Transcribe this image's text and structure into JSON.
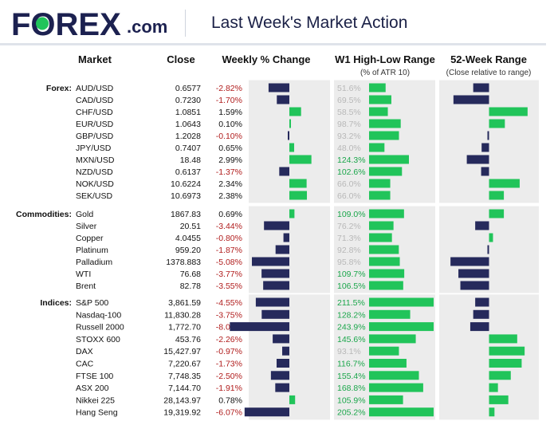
{
  "header": {
    "logo_text": "FOREX",
    "logo_suffix": ".com",
    "title": "Last Week's Market Action"
  },
  "colors": {
    "navy": "#262a5c",
    "green": "#21c45a",
    "gray_text": "#b8b8b8",
    "green_text": "#1aa64a",
    "neg_text": "#b01c1c",
    "panel_bg": "#ececec"
  },
  "columns": {
    "market": "Market",
    "close": "Close",
    "weekly": "Weekly % Change",
    "w1": "W1 High-Low Range",
    "w1_sub": "(% of ATR 10)",
    "w52": "52-Week Range",
    "w52_sub": "(Close relative to range)"
  },
  "chart_data": {
    "type": "table",
    "title": "Last Week's Market Action",
    "groups": [
      {
        "name": "Forex:",
        "rows": [
          {
            "market": "AUD/USD",
            "close": "0.6577",
            "chg": "-2.82%",
            "chg_v": -2.82,
            "rng": "51.6%",
            "rng_v": 51.6,
            "w52": -0.32
          },
          {
            "market": "CAD/USD",
            "close": "0.7230",
            "chg": "-1.70%",
            "chg_v": -1.7,
            "rng": "69.5%",
            "rng_v": 69.5,
            "w52": -0.72
          },
          {
            "market": "CHF/USD",
            "close": "1.0851",
            "chg": "1.59%",
            "chg_v": 1.59,
            "rng": "58.5%",
            "rng_v": 58.5,
            "w52": 0.78
          },
          {
            "market": "EUR/USD",
            "close": "1.0643",
            "chg": "0.10%",
            "chg_v": 0.1,
            "rng": "98.7%",
            "rng_v": 98.7,
            "w52": 0.32
          },
          {
            "market": "GBP/USD",
            "close": "1.2028",
            "chg": "-0.10%",
            "chg_v": -0.1,
            "rng": "93.2%",
            "rng_v": 93.2,
            "w52": -0.02
          },
          {
            "market": "JPY/USD",
            "close": "0.7407",
            "chg": "0.65%",
            "chg_v": 0.65,
            "rng": "48.0%",
            "rng_v": 48.0,
            "w52": -0.15
          },
          {
            "market": "MXN/USD",
            "close": "18.48",
            "chg": "2.99%",
            "chg_v": 2.99,
            "rng": "124.3%",
            "rng_v": 124.3,
            "w52": -0.45
          },
          {
            "market": "NZD/USD",
            "close": "0.6137",
            "chg": "-1.37%",
            "chg_v": -1.37,
            "rng": "102.6%",
            "rng_v": 102.6,
            "w52": -0.16
          },
          {
            "market": "NOK/USD",
            "close": "10.6224",
            "chg": "2.34%",
            "chg_v": 2.34,
            "rng": "66.0%",
            "rng_v": 66.0,
            "w52": 0.62
          },
          {
            "market": "SEK/USD",
            "close": "10.6973",
            "chg": "2.38%",
            "chg_v": 2.38,
            "rng": "66.0%",
            "rng_v": 66.0,
            "w52": 0.3
          }
        ]
      },
      {
        "name": "Commodities:",
        "rows": [
          {
            "market": "Gold",
            "close": "1867.83",
            "chg": "0.69%",
            "chg_v": 0.69,
            "rng": "109.0%",
            "rng_v": 109.0,
            "w52": 0.3
          },
          {
            "market": "Silver",
            "close": "20.51",
            "chg": "-3.44%",
            "chg_v": -3.44,
            "rng": "76.2%",
            "rng_v": 76.2,
            "w52": -0.28
          },
          {
            "market": "Copper",
            "close": "4.0455",
            "chg": "-0.80%",
            "chg_v": -0.8,
            "rng": "71.3%",
            "rng_v": 71.3,
            "w52": 0.08
          },
          {
            "market": "Platinum",
            "close": "959.20",
            "chg": "-1.87%",
            "chg_v": -1.87,
            "rng": "92.8%",
            "rng_v": 92.8,
            "w52": -0.02
          },
          {
            "market": "Palladium",
            "close": "1378.883",
            "chg": "-5.08%",
            "chg_v": -5.08,
            "rng": "95.8%",
            "rng_v": 95.8,
            "w52": -0.78
          },
          {
            "market": "WTI",
            "close": "76.68",
            "chg": "-3.77%",
            "chg_v": -3.77,
            "rng": "109.7%",
            "rng_v": 109.7,
            "w52": -0.62
          },
          {
            "market": "Brent",
            "close": "82.78",
            "chg": "-3.55%",
            "chg_v": -3.55,
            "rng": "106.5%",
            "rng_v": 106.5,
            "w52": -0.58
          }
        ]
      },
      {
        "name": "Indices:",
        "rows": [
          {
            "market": "S&P 500",
            "close": "3,861.59",
            "chg": "-4.55%",
            "chg_v": -4.55,
            "rng": "211.5%",
            "rng_v": 211.5,
            "w52": -0.28
          },
          {
            "market": "Nasdaq-100",
            "close": "11,830.28",
            "chg": "-3.75%",
            "chg_v": -3.75,
            "rng": "128.2%",
            "rng_v": 128.2,
            "w52": -0.32
          },
          {
            "market": "Russell 2000",
            "close": "1,772.70",
            "chg": "-8.07%",
            "chg_v": -8.07,
            "rng": "243.9%",
            "rng_v": 243.9,
            "w52": -0.38
          },
          {
            "market": "STOXX 600",
            "close": "453.76",
            "chg": "-2.26%",
            "chg_v": -2.26,
            "rng": "145.6%",
            "rng_v": 145.6,
            "w52": 0.57
          },
          {
            "market": "DAX",
            "close": "15,427.97",
            "chg": "-0.97%",
            "chg_v": -0.97,
            "rng": "93.1%",
            "rng_v": 93.1,
            "w52": 0.72
          },
          {
            "market": "CAC",
            "close": "7,220.67",
            "chg": "-1.73%",
            "chg_v": -1.73,
            "rng": "116.7%",
            "rng_v": 116.7,
            "w52": 0.66
          },
          {
            "market": "FTSE 100",
            "close": "7,748.35",
            "chg": "-2.50%",
            "chg_v": -2.5,
            "rng": "155.4%",
            "rng_v": 155.4,
            "w52": 0.44
          },
          {
            "market": "ASX 200",
            "close": "7,144.70",
            "chg": "-1.91%",
            "chg_v": -1.91,
            "rng": "168.8%",
            "rng_v": 168.8,
            "w52": 0.18
          },
          {
            "market": "Nikkei 225",
            "close": "28,143.97",
            "chg": "0.78%",
            "chg_v": 0.78,
            "rng": "105.9%",
            "rng_v": 105.9,
            "w52": 0.39
          },
          {
            "market": "Hang Seng",
            "close": "19,319.92",
            "chg": "-6.07%",
            "chg_v": -6.07,
            "rng": "205.2%",
            "rng_v": 205.2,
            "w52": 0.11
          }
        ]
      }
    ]
  }
}
